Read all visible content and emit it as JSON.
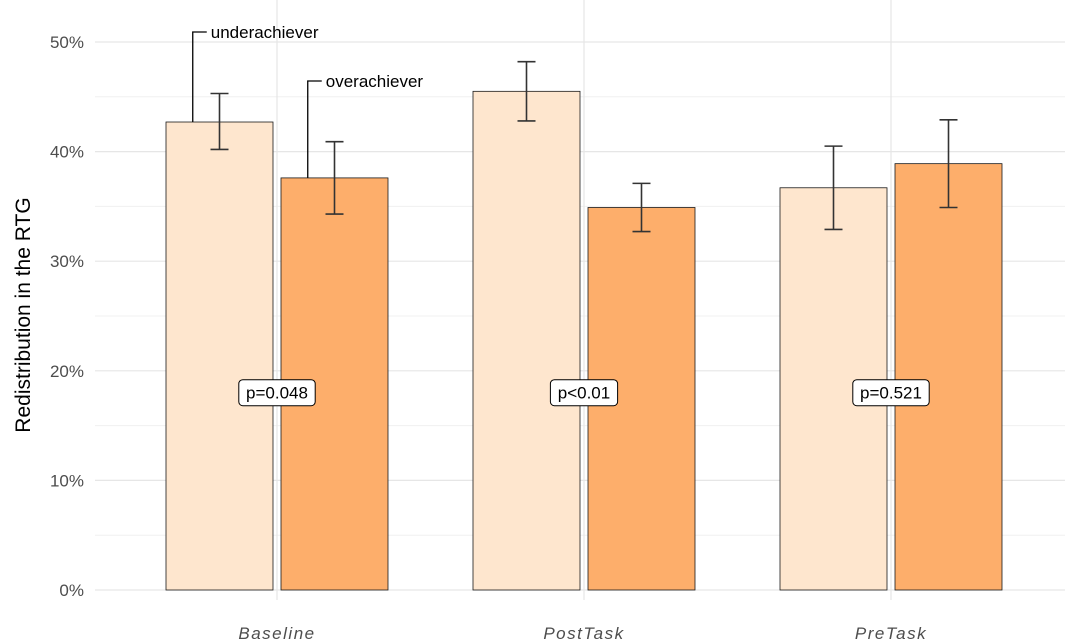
{
  "chart_data": {
    "type": "bar",
    "categories": [
      "Baseline",
      "PostTask",
      "PreTask"
    ],
    "ylabel": "Redistribution in the RTG",
    "xlabel": "",
    "ylim": [
      0,
      0.5
    ],
    "y_ticks": [
      0,
      0.1,
      0.2,
      0.3,
      0.4,
      0.5
    ],
    "y_tick_labels": [
      "0%",
      "10%",
      "20%",
      "30%",
      "40%",
      "50%"
    ],
    "grid": true,
    "legend": "none",
    "series": [
      {
        "name": "underachiever",
        "color": "#fee6ce",
        "values": [
          0.427,
          0.455,
          0.367
        ],
        "error_low": [
          0.402,
          0.428,
          0.329
        ],
        "error_high": [
          0.453,
          0.482,
          0.405
        ]
      },
      {
        "name": "overachiever",
        "color": "#fdae6b",
        "values": [
          0.376,
          0.349,
          0.389
        ],
        "error_low": [
          0.343,
          0.327,
          0.349
        ],
        "error_high": [
          0.409,
          0.371,
          0.429
        ]
      }
    ],
    "annotations": [
      {
        "text": "underachiever",
        "category": "Baseline",
        "series": "underachiever"
      },
      {
        "text": "overachiever",
        "category": "Baseline",
        "series": "overachiever"
      }
    ],
    "p_values": [
      "p=0.048",
      "p<0.01",
      "p=0.521"
    ],
    "p_value_y": 0.18
  }
}
